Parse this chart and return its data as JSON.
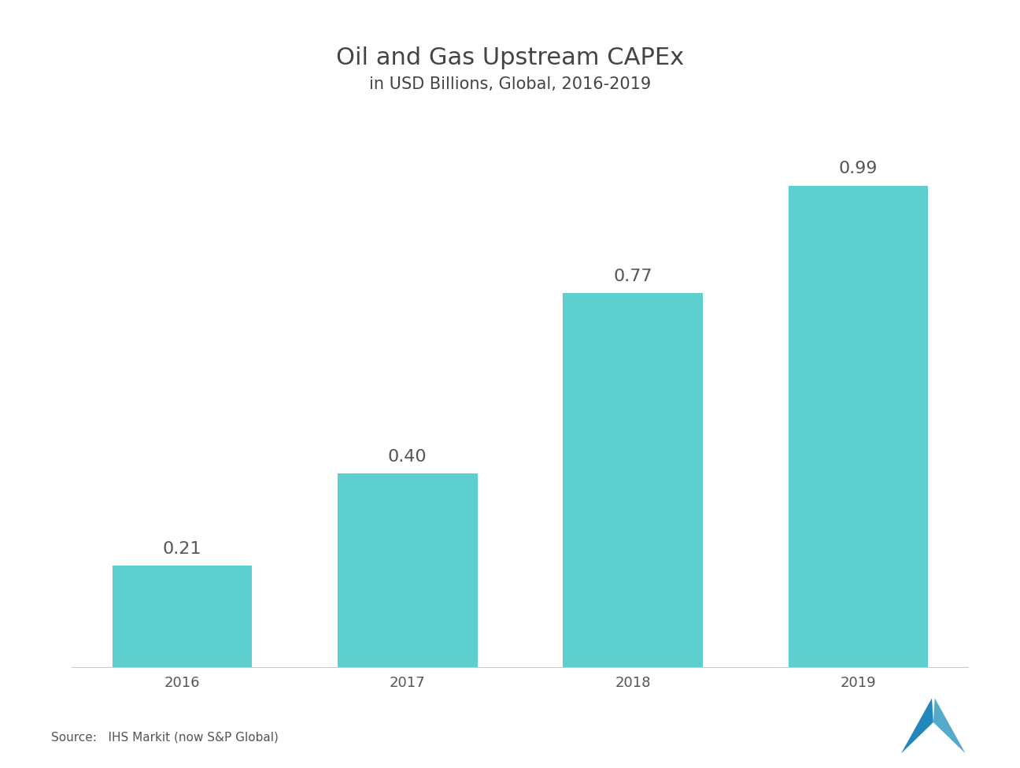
{
  "title_line1": "Oil and Gas Upstream CAPEx",
  "title_line2": "in USD Billions, Global, 2016-2019",
  "categories": [
    "2016",
    "2017",
    "2018",
    "2019"
  ],
  "values": [
    0.21,
    0.4,
    0.77,
    0.99
  ],
  "bar_labels": [
    "0.21",
    "0.40",
    "0.77",
    "0.99"
  ],
  "bar_color": "#5ECFCF",
  "background_color": "#ffffff",
  "text_color": "#555555",
  "title_color": "#444444",
  "source_text": "Source:   IHS Markit (now S&P Global)",
  "ylim": [
    0,
    1.15
  ],
  "title_fontsize": 22,
  "subtitle_fontsize": 15,
  "label_fontsize": 16,
  "tick_fontsize": 13,
  "bar_width": 0.62
}
